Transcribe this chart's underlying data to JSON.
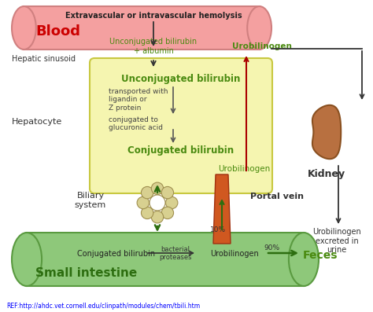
{
  "bg_color": "#ffffff",
  "ref_text": "REF:http://ahdc.vet.cornell.edu/clinpath/modules/chem/tbili.htm",
  "blood_cylinder_color": "#f4a0a0",
  "blood_cylinder_edge": "#d08080",
  "blood_label": "Blood",
  "blood_label_color": "#cc0000",
  "hepatic_sinusoid_label": "Hepatic sinusoid",
  "hepatocyte_label": "Hepatocyte",
  "hepatocyte_box_color": "#f5f5b0",
  "hepatocyte_box_edge": "#c8c840",
  "small_intestine_color": "#8ec87a",
  "small_intestine_edge": "#5a9a40",
  "small_intestine_label": "Small intestine",
  "small_intestine_label_color": "#2d6e10",
  "kidney_color": "#b87040",
  "kidney_edge": "#8a5020",
  "kidney_label": "Kidney",
  "biliary_label": "Biliary\nsystem",
  "biliary_color": "#d8d090",
  "biliary_edge": "#a09050",
  "portal_vein_label": "Portal vein",
  "portal_vein_color": "#d05820",
  "portal_vein_edge": "#a03010",
  "arrow_color": "#333333",
  "dark_red_arrow": "#aa0000",
  "green_arrow": "#2d6e10",
  "text_green": "#4a8a10",
  "text_dark": "#333333",
  "hemolysis_text": "Extravascular or intravascular hemolysis",
  "unconj_albumin_text": "Unconjugated bilirubin\n+ albumin",
  "urobilinogen_blood_text": "Urobilinogen",
  "unconj_hepatocyte_text": "Unconjugated bilirubin",
  "transported_text": "transported with\nligandin or\nZ protein",
  "conjugated_text": "conjugated to\nglucuronic acid",
  "conj_bili_hep_text": "Conjugated bilirubin",
  "urobilinogen_hep_text": "Urobilinogen",
  "conj_bili_intestine_text": "Conjugated bilirubin",
  "bacterial_text": "bacterial\nproteases",
  "urobilinogen_intestine_text": "Urobilinogen",
  "feces_text": "Feces",
  "pct_10_text": "10%",
  "pct_90_text": "90%",
  "urobilinogen_urine_text": "Urobilinogen\nexcreted in\nurine"
}
